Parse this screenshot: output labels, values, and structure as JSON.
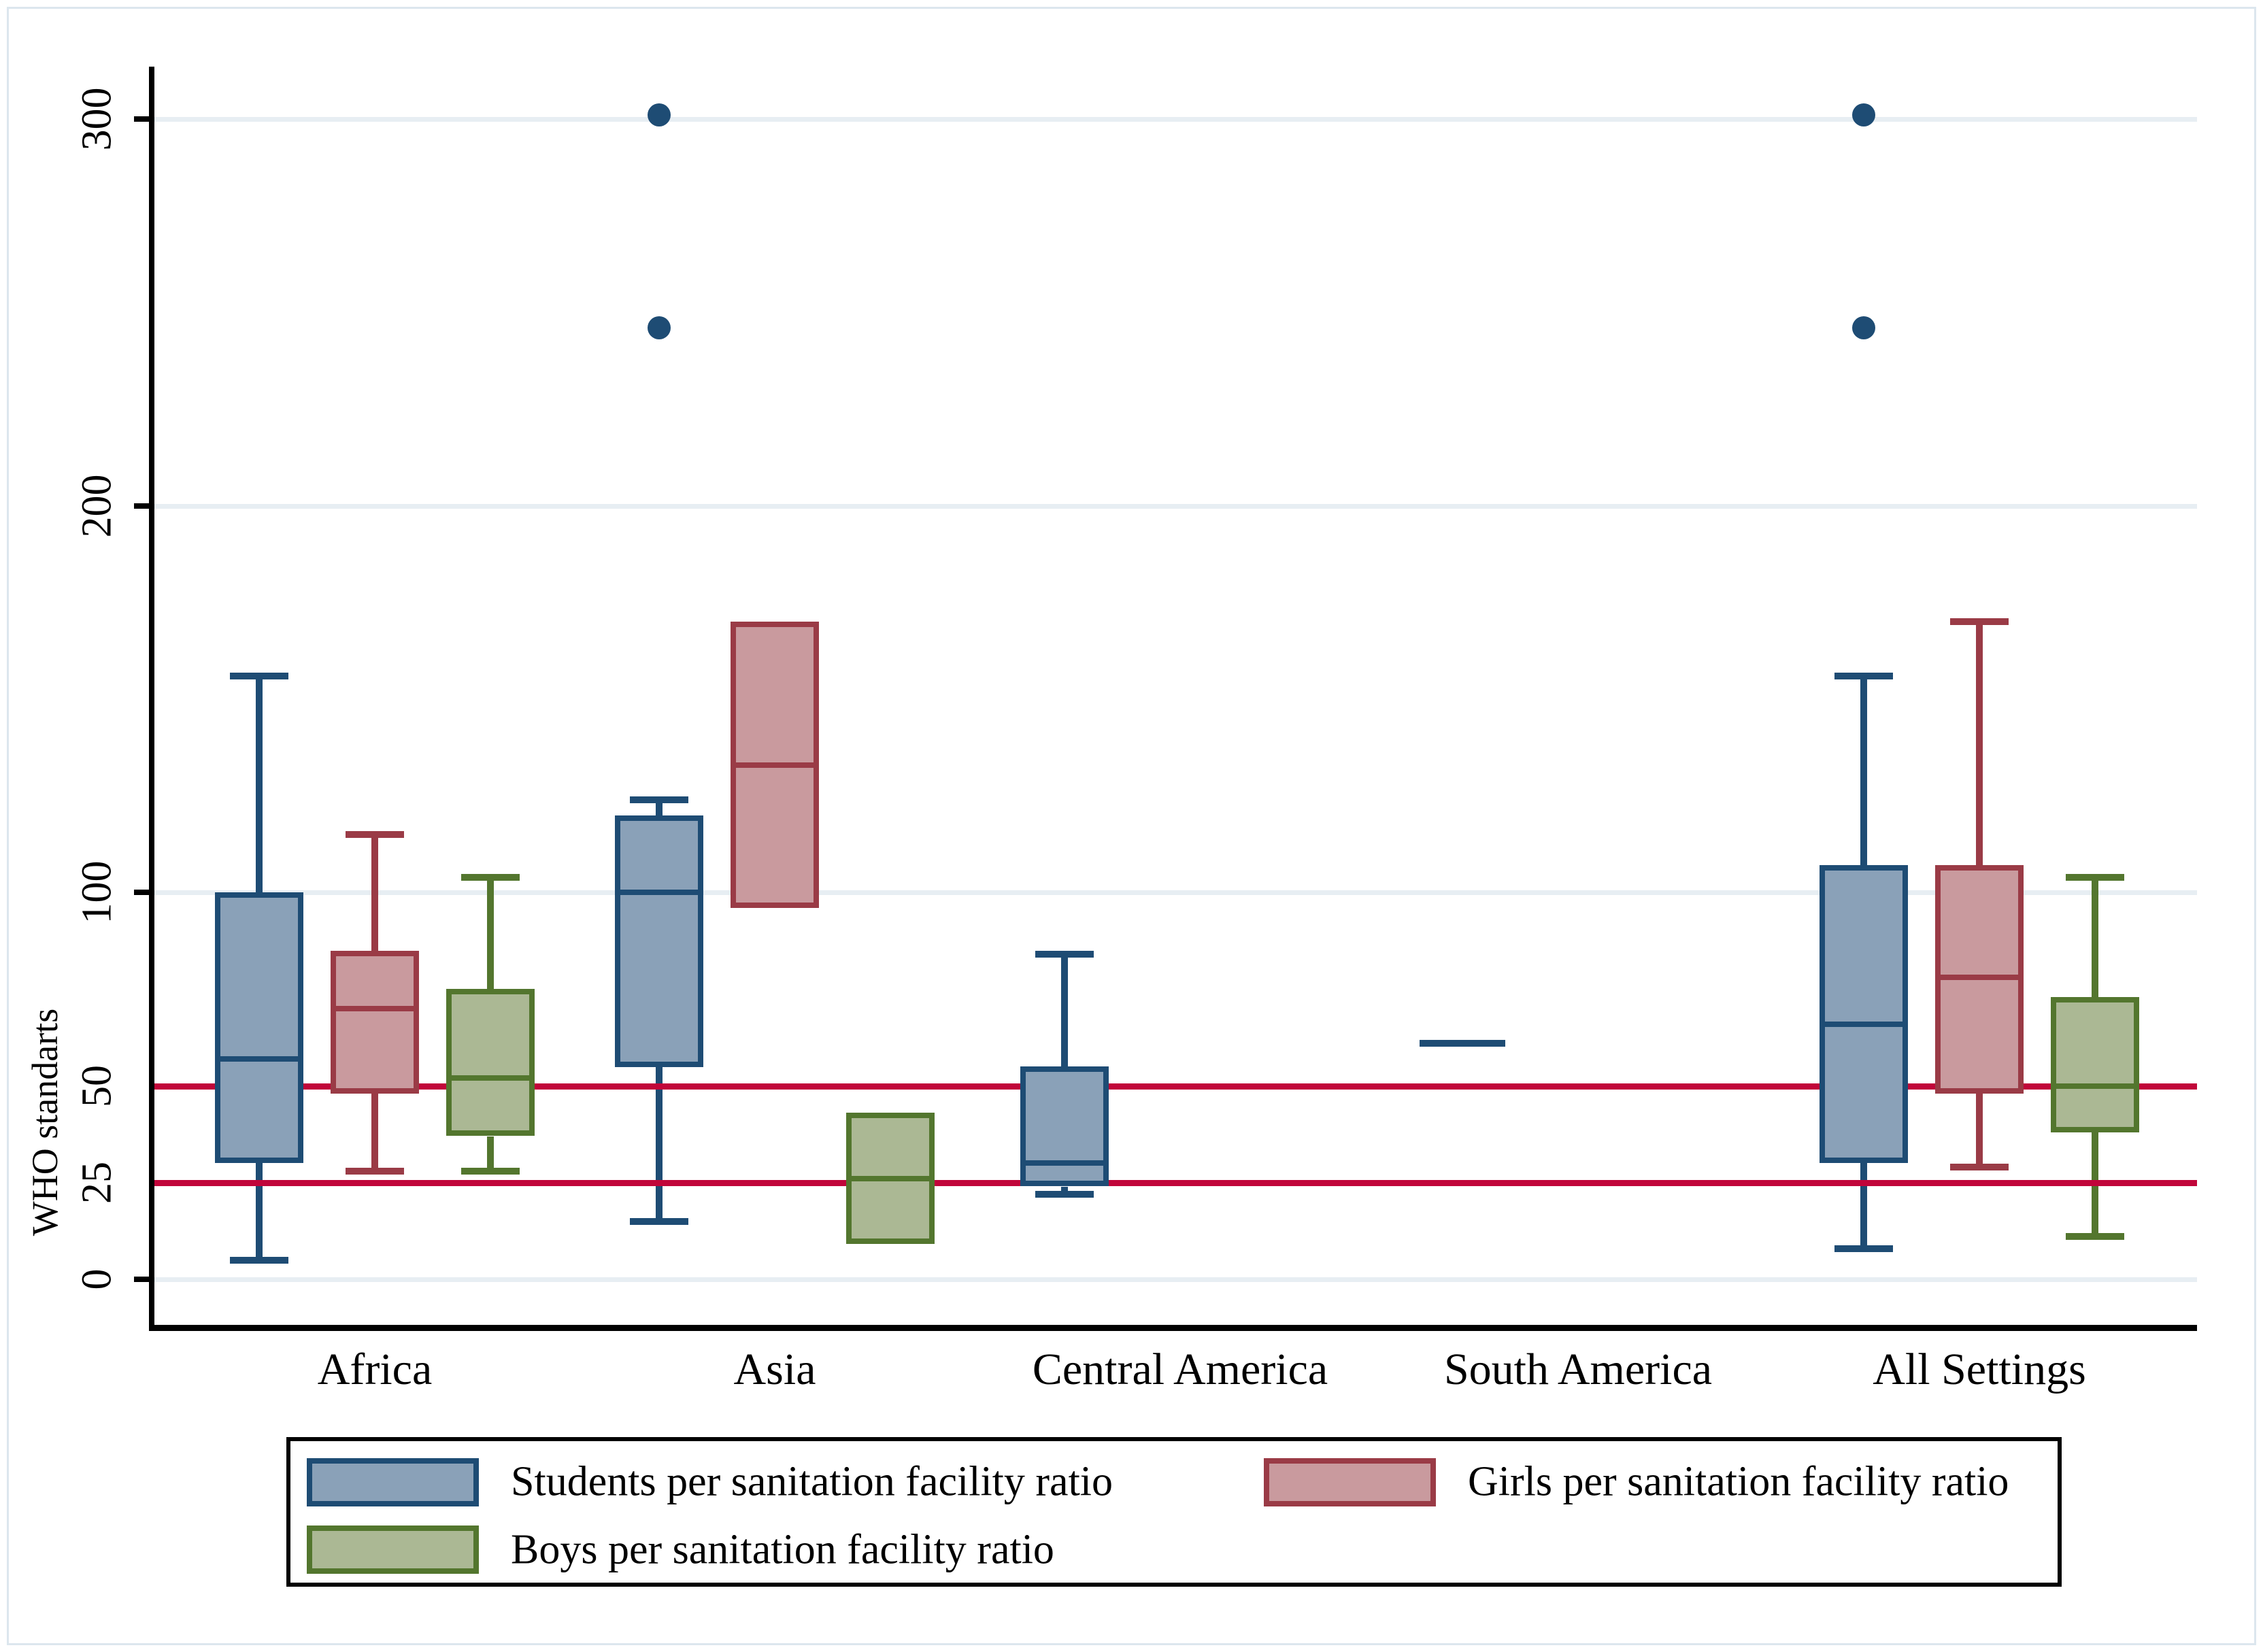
{
  "figure": {
    "background": "#ffffff",
    "frame_color": "#dce6ee",
    "axis_color": "#000000",
    "grid_color": "#e7eef3",
    "text_color": "#000000"
  },
  "chart_data": {
    "type": "boxplot",
    "title": "",
    "ylabel": "WHO standarts",
    "xlabel": "",
    "yticks": [
      0,
      25,
      50,
      100,
      200,
      300
    ],
    "grid_values": [
      0,
      100,
      200,
      300
    ],
    "ylim": [
      -12,
      313
    ],
    "grid": "horizontal-major",
    "legend_position": "bottom",
    "reference_lines": [
      {
        "value": 50,
        "color": "#c1053a"
      },
      {
        "value": 25,
        "color": "#c1053a"
      }
    ],
    "categories": [
      "Africa",
      "Asia",
      "Central America",
      "South America",
      "All Settings"
    ],
    "series": [
      {
        "name": "Students per sanitation facility ratio",
        "fill": "#8aa1b8",
        "border": "#1e4c74",
        "boxes": [
          {
            "category": "Africa",
            "low": 5,
            "q1": 30,
            "median": 57,
            "q3": 100,
            "high": 156,
            "outliers": []
          },
          {
            "category": "Asia",
            "low": 15,
            "q1": 55,
            "median": 100,
            "q3": 120,
            "high": 124,
            "outliers": [
              246,
              301
            ]
          },
          {
            "category": "Central America",
            "low": 22,
            "q1": 24,
            "median": 30,
            "q3": 55,
            "high": 84,
            "outliers": []
          },
          {
            "category": "South America",
            "low": 61,
            "q1": 61,
            "median": 61,
            "q3": 61,
            "high": 61,
            "outliers": []
          },
          {
            "category": "All Settings",
            "low": 8,
            "q1": 30,
            "median": 66,
            "q3": 107,
            "high": 156,
            "outliers": [
              246,
              301
            ]
          }
        ]
      },
      {
        "name": "Girls per sanitation facility ratio",
        "fill": "#c99a9e",
        "border": "#9a3b46",
        "boxes": [
          {
            "category": "Africa",
            "low": 28,
            "q1": 48,
            "median": 70,
            "q3": 85,
            "high": 115,
            "outliers": []
          },
          {
            "category": "Asia",
            "low": 96,
            "q1": 96,
            "median": 133,
            "q3": 170,
            "high": 170,
            "outliers": []
          },
          null,
          null,
          {
            "category": "All Settings",
            "low": 29,
            "q1": 48,
            "median": 78,
            "q3": 107,
            "high": 170,
            "outliers": []
          }
        ]
      },
      {
        "name": "Boys per sanitation facility ratio",
        "fill": "#abb894",
        "border": "#53762e",
        "boxes": [
          {
            "category": "Africa",
            "low": 28,
            "q1": 37,
            "median": 52,
            "q3": 75,
            "high": 104,
            "outliers": []
          },
          {
            "category": "Asia",
            "low": 9,
            "q1": 9,
            "median": 26,
            "q3": 43,
            "high": 43,
            "outliers": []
          },
          null,
          null,
          {
            "category": "All Settings",
            "low": 11,
            "q1": 38,
            "median": 50,
            "q3": 73,
            "high": 104,
            "outliers": []
          }
        ]
      }
    ]
  }
}
